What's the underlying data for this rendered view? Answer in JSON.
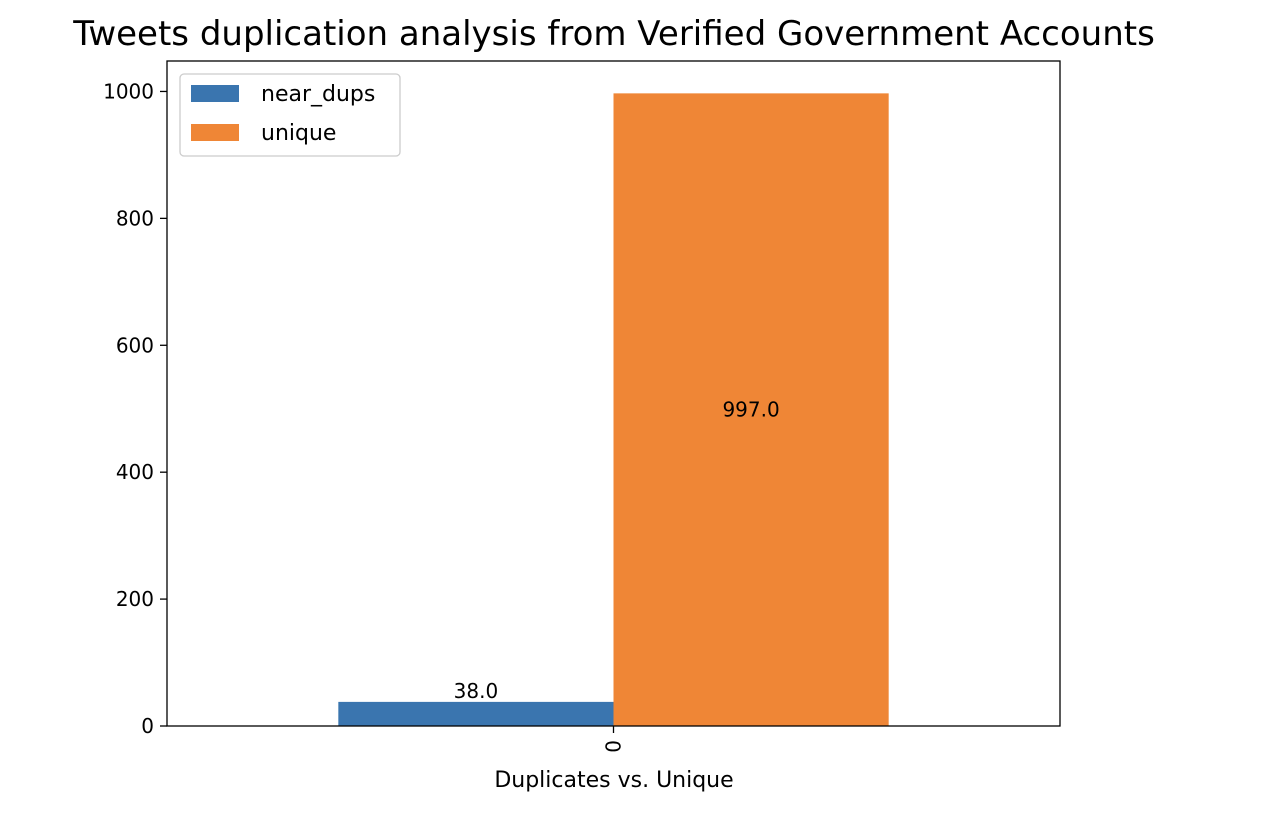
{
  "chart_data": {
    "type": "bar",
    "title": "Tweets duplication analysis from Verified Government Accounts",
    "xlabel": "Duplicates vs. Unique",
    "ylabel": "",
    "categories": [
      "0"
    ],
    "ylim": [
      0,
      1048
    ],
    "yticks": [
      0,
      200,
      400,
      600,
      800,
      1000
    ],
    "grid": false,
    "legend_position": "top-left",
    "series": [
      {
        "name": "near_dups",
        "values": [
          38.0
        ],
        "label": "38.0",
        "color": "#3a75af",
        "label_position": "above"
      },
      {
        "name": "unique",
        "values": [
          997.0
        ],
        "label": "997.0",
        "color": "#ef8636",
        "label_position": "center"
      }
    ]
  }
}
